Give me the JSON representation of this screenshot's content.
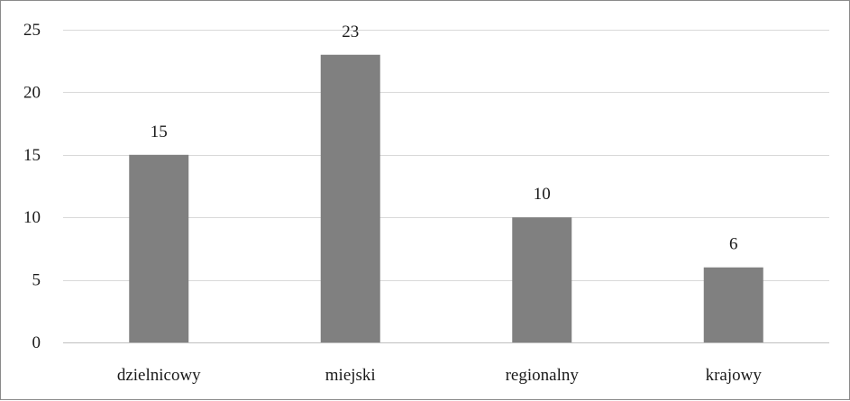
{
  "chart_data": {
    "type": "bar",
    "categories": [
      "dzielnicowy",
      "miejski",
      "regionalny",
      "krajowy"
    ],
    "values": [
      15,
      23,
      10,
      6
    ],
    "data_labels": [
      "15",
      "23",
      "10",
      "6"
    ],
    "title": "",
    "xlabel": "",
    "ylabel": "",
    "ylim": [
      0,
      25
    ],
    "yticks": [
      0,
      5,
      10,
      15,
      20,
      25
    ],
    "ytick_labels": [
      "0",
      "5",
      "10",
      "15",
      "20",
      "25"
    ],
    "grid": true,
    "legend": "none",
    "colors": {
      "bar": "#808080",
      "grid": "#d9d9d9",
      "axis": "#bfbfbf",
      "text": "#1a1a1a"
    }
  }
}
